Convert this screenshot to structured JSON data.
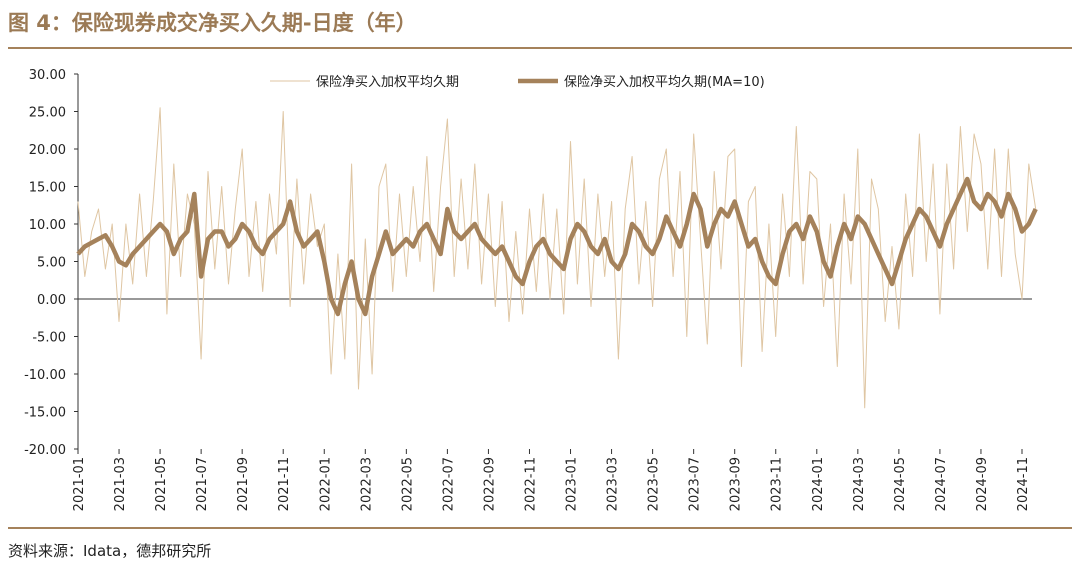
{
  "chart_data": {
    "type": "line",
    "title": "图 4：保险现券成交净买入久期-日度（年）",
    "source": "资料来源：Idata，德邦研究所",
    "categories": [
      "2021-01",
      null,
      null,
      null,
      null,
      null,
      "2021-03",
      null,
      null,
      null,
      null,
      null,
      "2021-05",
      null,
      null,
      null,
      null,
      null,
      "2021-07",
      null,
      null,
      null,
      null,
      null,
      "2021-09",
      null,
      null,
      null,
      null,
      null,
      "2021-11",
      null,
      null,
      null,
      null,
      null,
      "2022-01",
      null,
      null,
      null,
      null,
      null,
      "2022-03",
      null,
      null,
      null,
      null,
      null,
      "2022-05",
      null,
      null,
      null,
      null,
      null,
      "2022-07",
      null,
      null,
      null,
      null,
      null,
      "2022-09",
      null,
      null,
      null,
      null,
      null,
      "2022-11",
      null,
      null,
      null,
      null,
      null,
      "2023-01",
      null,
      null,
      null,
      null,
      null,
      "2023-03",
      null,
      null,
      null,
      null,
      null,
      "2023-05",
      null,
      null,
      null,
      null,
      null,
      "2023-07",
      null,
      null,
      null,
      null,
      null,
      "2023-09",
      null,
      null,
      null,
      null,
      null,
      "2023-11",
      null,
      null,
      null,
      null,
      null,
      "2024-01",
      null,
      null,
      null,
      null,
      null,
      "2024-03",
      null,
      null,
      null,
      null,
      null,
      "2024-05",
      null,
      null,
      null,
      null,
      null,
      "2024-07",
      null,
      null,
      null,
      null,
      null,
      "2024-09",
      null,
      null,
      null,
      null,
      null,
      "2024-11",
      null,
      null
    ],
    "series": [
      {
        "name": "保险净买入加权平均久期",
        "color": "#dfc6a3",
        "width": 1,
        "values": [
          13,
          3,
          9,
          12,
          4,
          10,
          -3,
          10,
          2,
          14,
          3,
          13,
          25.5,
          -2,
          18,
          3,
          14,
          10,
          -8,
          17,
          4,
          15,
          2,
          12,
          20,
          3,
          13,
          1,
          14,
          6,
          25,
          -1,
          16,
          2,
          14,
          7,
          10,
          -10,
          6,
          -8,
          18,
          -12,
          8,
          -10,
          15,
          18,
          1,
          14,
          3,
          15,
          5,
          19,
          1,
          15,
          24,
          3,
          16,
          4,
          18,
          2,
          14,
          -1,
          13,
          -3,
          9,
          -2,
          12,
          1,
          14,
          0,
          12,
          -2,
          21,
          2,
          16,
          -1,
          14,
          3,
          13,
          -8,
          12,
          19,
          2,
          13,
          -1,
          16,
          20,
          3,
          17,
          -5,
          22,
          8,
          -6,
          17,
          4,
          19,
          20,
          -9,
          13,
          15,
          -7,
          10,
          -5,
          14,
          3,
          23,
          2,
          17,
          16,
          -1,
          10,
          -9,
          14,
          2,
          20,
          -14.5,
          16,
          12,
          -3,
          7,
          -4,
          14,
          3,
          22,
          5,
          18,
          -2,
          18,
          4,
          23,
          9,
          22,
          18,
          4,
          20,
          3,
          20,
          6,
          0,
          18,
          12
        ]
      },
      {
        "name": "保险净买入加权平均久期(MA=10)",
        "color": "#a5825b",
        "width": 4.5,
        "values": [
          6,
          7,
          7.5,
          8,
          8.5,
          7,
          5,
          4.5,
          6,
          7,
          8,
          9,
          10,
          9,
          6,
          8,
          9,
          14,
          3,
          8,
          9,
          9,
          7,
          8,
          10,
          9,
          7,
          6,
          8,
          9,
          10,
          13,
          9,
          7,
          8,
          9,
          5,
          0,
          -2,
          2,
          5,
          0,
          -2,
          3,
          6,
          9,
          6,
          7,
          8,
          7,
          9,
          10,
          8,
          6,
          12,
          9,
          8,
          9,
          10,
          8,
          7,
          6,
          7,
          5,
          3,
          2,
          5,
          7,
          8,
          6,
          5,
          4,
          8,
          10,
          9,
          7,
          6,
          8,
          5,
          4,
          6,
          10,
          9,
          7,
          6,
          8,
          11,
          9,
          7,
          10,
          14,
          12,
          7,
          10,
          12,
          11,
          13,
          10,
          7,
          8,
          5,
          3,
          2,
          6,
          9,
          10,
          8,
          11,
          9,
          5,
          3,
          7,
          10,
          8,
          11,
          10,
          8,
          6,
          4,
          2,
          5,
          8,
          10,
          12,
          11,
          9,
          7,
          10,
          12,
          14,
          16,
          13,
          12,
          14,
          13,
          11,
          14,
          12,
          9,
          10,
          12
        ]
      }
    ],
    "ylim": [
      -20,
      30
    ],
    "yticks": [
      {
        "value": -20,
        "label": "-20.00"
      },
      {
        "value": -15,
        "label": "-15.00"
      },
      {
        "value": -10,
        "label": "-10.00"
      },
      {
        "value": -5,
        "label": "-5.00"
      },
      {
        "value": 0,
        "label": "0.00"
      },
      {
        "value": 5,
        "label": "5.00"
      },
      {
        "value": 10,
        "label": "10.00"
      },
      {
        "value": 15,
        "label": "15.00"
      },
      {
        "value": 20,
        "label": "20.00"
      },
      {
        "value": 25,
        "label": "25.00"
      },
      {
        "value": 30,
        "label": "30.00"
      }
    ],
    "legend": "top"
  }
}
